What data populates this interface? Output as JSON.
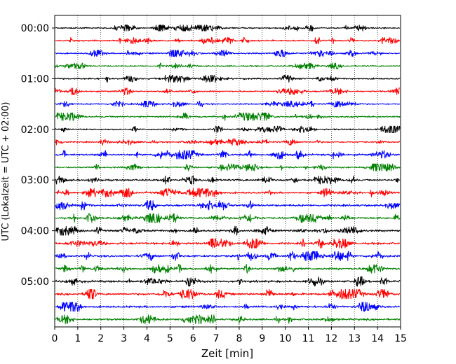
{
  "chart_data": {
    "type": "line",
    "title": "",
    "xlabel": "Zeit  [min]",
    "ylabel": "UTC (Lokalzeit = UTC + 02:00)",
    "xlim": [
      0,
      15
    ],
    "x_ticks": [
      "0",
      "1",
      "2",
      "3",
      "4",
      "5",
      "6",
      "7",
      "8",
      "9",
      "10",
      "11",
      "12",
      "13",
      "14",
      "15"
    ],
    "y_ticks": [
      "00:00",
      "01:00",
      "02:00",
      "03:00",
      "04:00",
      "05:00"
    ],
    "grid": "vertical dotted at each minute",
    "trace_colors": [
      "#000000",
      "#ff0000",
      "#0000ff",
      "#008000"
    ],
    "rows": [
      {
        "start": "00:00",
        "amplitude": 0.18
      },
      {
        "start": "00:15",
        "amplitude": 0.22
      },
      {
        "start": "00:30",
        "amplitude": 0.22
      },
      {
        "start": "00:45",
        "amplitude": 0.18
      },
      {
        "start": "01:00",
        "amplitude": 0.26
      },
      {
        "start": "01:15",
        "amplitude": 0.24
      },
      {
        "start": "01:30",
        "amplitude": 0.18
      },
      {
        "start": "01:45",
        "amplitude": 0.3
      },
      {
        "start": "02:00",
        "amplitude": 0.22
      },
      {
        "start": "02:15",
        "amplitude": 0.22
      },
      {
        "start": "02:30",
        "amplitude": 0.36
      },
      {
        "start": "02:45",
        "amplitude": 0.26
      },
      {
        "start": "03:00",
        "amplitude": 0.34
      },
      {
        "start": "03:15",
        "amplitude": 0.36
      },
      {
        "start": "03:30",
        "amplitude": 0.42
      },
      {
        "start": "03:45",
        "amplitude": 0.38
      },
      {
        "start": "04:00",
        "amplitude": 0.4
      },
      {
        "start": "04:15",
        "amplitude": 0.42
      },
      {
        "start": "04:30",
        "amplitude": 0.42
      },
      {
        "start": "04:45",
        "amplitude": 0.4
      },
      {
        "start": "05:00",
        "amplitude": 0.44
      },
      {
        "start": "05:15",
        "amplitude": 0.42
      },
      {
        "start": "05:30",
        "amplitude": 0.4
      },
      {
        "start": "05:45",
        "amplitude": 0.4
      }
    ]
  }
}
